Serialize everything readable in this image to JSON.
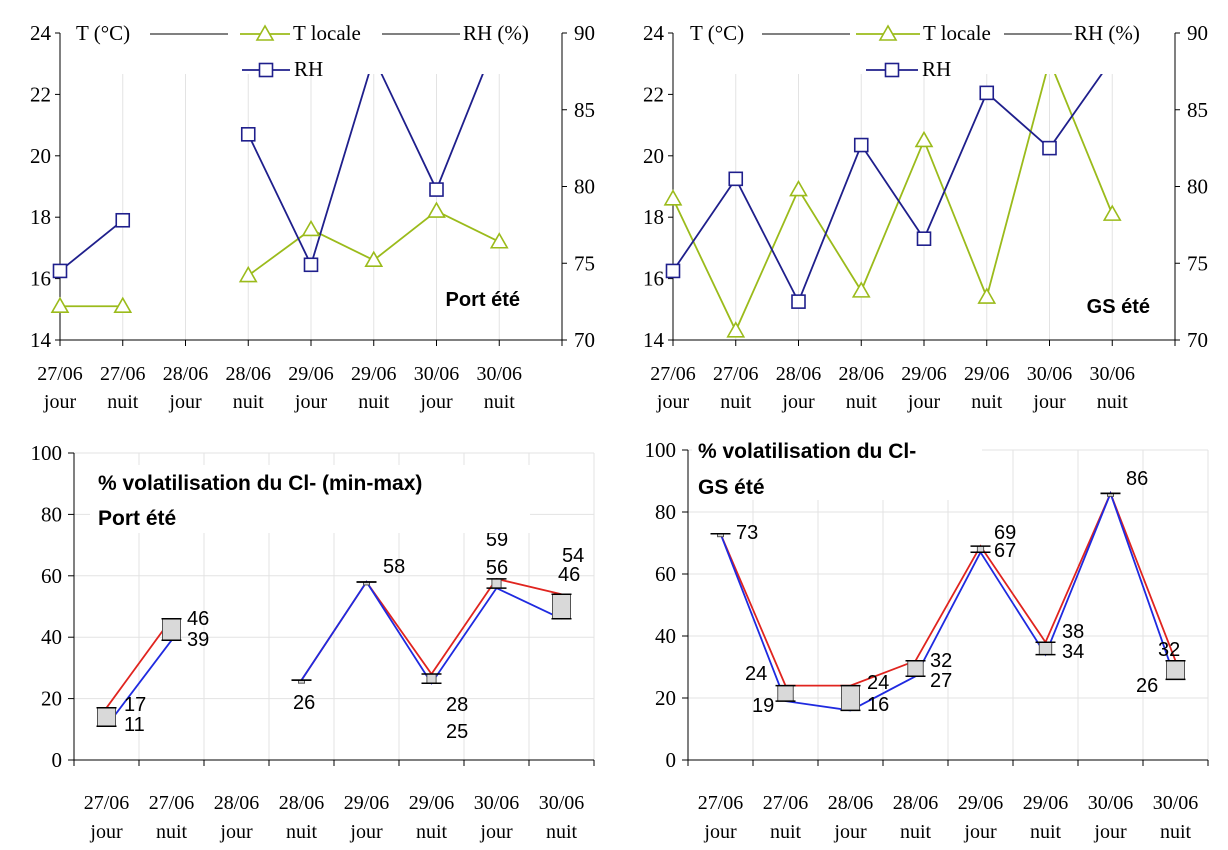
{
  "chart_data": [
    {
      "type": "line",
      "panel": "top-left",
      "title": "",
      "annotation": "Port été",
      "categories": [
        "27/06",
        "27/06",
        "28/06",
        "28/06",
        "29/06",
        "29/06",
        "30/06",
        "30/06"
      ],
      "categories_sub": [
        "jour",
        "nuit",
        "jour",
        "nuit",
        "jour",
        "nuit",
        "jour",
        "nuit"
      ],
      "ylabel_left": "T (°C)",
      "ylabel_right": "RH (%)",
      "ylim_left": [
        14,
        24
      ],
      "yticks_left": [
        14,
        16,
        18,
        20,
        22,
        24
      ],
      "ylim_right": [
        70,
        90
      ],
      "yticks_right": [
        70,
        75,
        80,
        85,
        90
      ],
      "legend_position": "top",
      "grid": true,
      "series": [
        {
          "name": "T locale",
          "axis": "left",
          "color": "#9BBB1B",
          "marker": "triangle",
          "values": [
            15.1,
            15.1,
            null,
            16.1,
            17.6,
            16.6,
            18.2,
            17.2
          ]
        },
        {
          "name": "RH",
          "axis": "right",
          "color": "#1F1F8C",
          "marker": "square",
          "values": [
            74.5,
            77.8,
            null,
            83.4,
            74.9,
            88.4,
            79.8,
            90.0
          ]
        }
      ]
    },
    {
      "type": "line",
      "panel": "top-right",
      "title": "",
      "annotation": "GS été",
      "categories": [
        "27/06",
        "27/06",
        "28/06",
        "28/06",
        "29/06",
        "29/06",
        "30/06",
        "30/06"
      ],
      "categories_sub": [
        "jour",
        "nuit",
        "jour",
        "nuit",
        "jour",
        "nuit",
        "jour",
        "nuit"
      ],
      "ylabel_left": "T (°C)",
      "ylabel_right": "RH (%)",
      "ylim_left": [
        14,
        24
      ],
      "yticks_left": [
        14,
        16,
        18,
        20,
        22,
        24
      ],
      "ylim_right": [
        70,
        90
      ],
      "yticks_right": [
        70,
        75,
        80,
        85,
        90
      ],
      "legend_position": "top",
      "grid": true,
      "series": [
        {
          "name": "T locale",
          "axis": "left",
          "color": "#9BBB1B",
          "marker": "triangle",
          "values": [
            18.6,
            14.3,
            18.9,
            15.6,
            20.5,
            15.4,
            23.1,
            18.1
          ]
        },
        {
          "name": "RH",
          "axis": "right",
          "color": "#1F1F8C",
          "marker": "square",
          "values": [
            74.5,
            80.5,
            72.5,
            82.7,
            76.6,
            86.1,
            82.5,
            88.3
          ]
        }
      ]
    },
    {
      "type": "line",
      "panel": "bottom-left",
      "title": "% volatilisation du Cl- (min-max)",
      "subtitle": "Port été",
      "categories": [
        "27/06",
        "27/06",
        "28/06",
        "28/06",
        "29/06",
        "29/06",
        "30/06",
        "30/06"
      ],
      "categories_sub": [
        "jour",
        "nuit",
        "jour",
        "nuit",
        "jour",
        "nuit",
        "jour",
        "nuit"
      ],
      "ylim": [
        0,
        100
      ],
      "yticks": [
        0,
        20,
        40,
        60,
        80,
        100
      ],
      "grid": true,
      "series": [
        {
          "name": "",
          "color": "#E0241F",
          "values": [
            17,
            46,
            null,
            26,
            58,
            28,
            59,
            54
          ]
        },
        {
          "name": "",
          "color": "#1F2AE0",
          "values": [
            11,
            39,
            null,
            26,
            58,
            25,
            56,
            46
          ]
        }
      ],
      "labels_max": [
        "17",
        "46",
        "",
        "",
        "58",
        "28",
        "59",
        "54"
      ],
      "labels_min": [
        "11",
        "39",
        "",
        "26",
        "",
        "25",
        "56",
        "46"
      ]
    },
    {
      "type": "line",
      "panel": "bottom-right",
      "title": "% volatilisation du Cl-",
      "subtitle": "GS été",
      "categories": [
        "27/06",
        "27/06",
        "28/06",
        "28/06",
        "29/06",
        "29/06",
        "30/06",
        "30/06"
      ],
      "categories_sub": [
        "jour",
        "nuit",
        "jour",
        "nuit",
        "jour",
        "nuit",
        "jour",
        "nuit"
      ],
      "ylim": [
        0,
        100
      ],
      "yticks": [
        0,
        20,
        40,
        60,
        80,
        100
      ],
      "grid": true,
      "series": [
        {
          "name": "",
          "color": "#E0241F",
          "values": [
            73,
            24,
            24,
            32,
            69,
            38,
            86,
            32
          ]
        },
        {
          "name": "",
          "color": "#1F2AE0",
          "values": [
            73,
            19,
            16,
            27,
            67,
            34,
            86,
            26
          ]
        }
      ],
      "labels_max": [
        "73",
        "24",
        "24",
        "32",
        "69",
        "38",
        "86",
        "32"
      ],
      "labels_min": [
        "",
        "19",
        "16",
        "27",
        "67",
        "34",
        "",
        "26"
      ]
    }
  ]
}
